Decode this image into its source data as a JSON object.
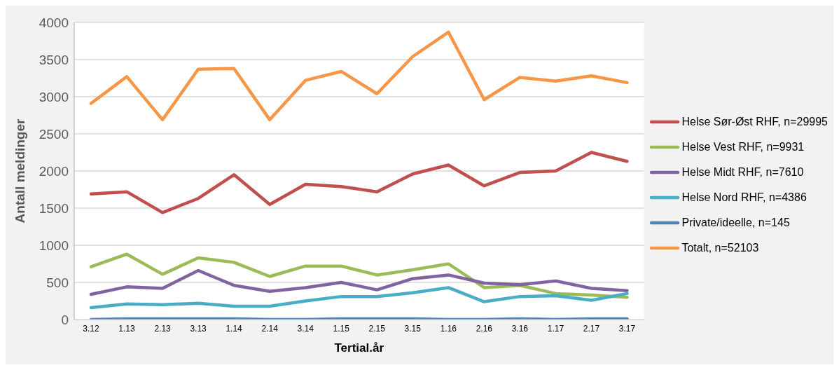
{
  "chart_data": {
    "type": "line",
    "xlabel": "Tertial.år",
    "ylabel": "Antall meldinger",
    "categories": [
      "3.12",
      "1.13",
      "2.13",
      "3.13",
      "1.14",
      "2.14",
      "3.14",
      "1.15",
      "2.15",
      "3.15",
      "1.16",
      "2.16",
      "3.16",
      "1.17",
      "2.17",
      "3.17"
    ],
    "series": [
      {
        "name": "Helse Sør-Øst RHF, n=29995",
        "color": "#c0504d",
        "values": [
          1690,
          1720,
          1440,
          1630,
          1950,
          1550,
          1820,
          1790,
          1720,
          1960,
          2080,
          1800,
          1980,
          2000,
          2250,
          2130
        ]
      },
      {
        "name": "Helse Vest RHF, n=9931",
        "color": "#9bbb59",
        "values": [
          710,
          880,
          610,
          830,
          770,
          580,
          720,
          720,
          600,
          670,
          750,
          430,
          460,
          350,
          330,
          300
        ]
      },
      {
        "name": "Helse Midt RHF, n=7610",
        "color": "#8064a2",
        "values": [
          340,
          440,
          420,
          660,
          460,
          380,
          430,
          500,
          400,
          550,
          600,
          490,
          470,
          520,
          420,
          390
        ]
      },
      {
        "name": "Helse Nord RHF, n=4386",
        "color": "#4bacc6",
        "values": [
          160,
          210,
          200,
          220,
          180,
          180,
          250,
          310,
          310,
          360,
          430,
          240,
          310,
          320,
          260,
          350
        ]
      },
      {
        "name": "Private/ideelle, n=145",
        "color": "#4f81bd",
        "values": [
          0,
          10,
          10,
          10,
          10,
          0,
          0,
          10,
          10,
          10,
          0,
          0,
          10,
          0,
          10,
          10
        ]
      },
      {
        "name": "Totalt, n=52103",
        "color": "#f79646",
        "values": [
          2910,
          3270,
          2690,
          3370,
          3380,
          2690,
          3220,
          3340,
          3040,
          3540,
          3870,
          2960,
          3260,
          3210,
          3280,
          3190
        ]
      }
    ],
    "ylim": [
      0,
      4000
    ],
    "yticks": [
      0,
      500,
      1000,
      1500,
      2000,
      2500,
      3000,
      3500,
      4000
    ],
    "grid": "y",
    "legend": "right",
    "marker": "none",
    "line_style": "solid"
  }
}
